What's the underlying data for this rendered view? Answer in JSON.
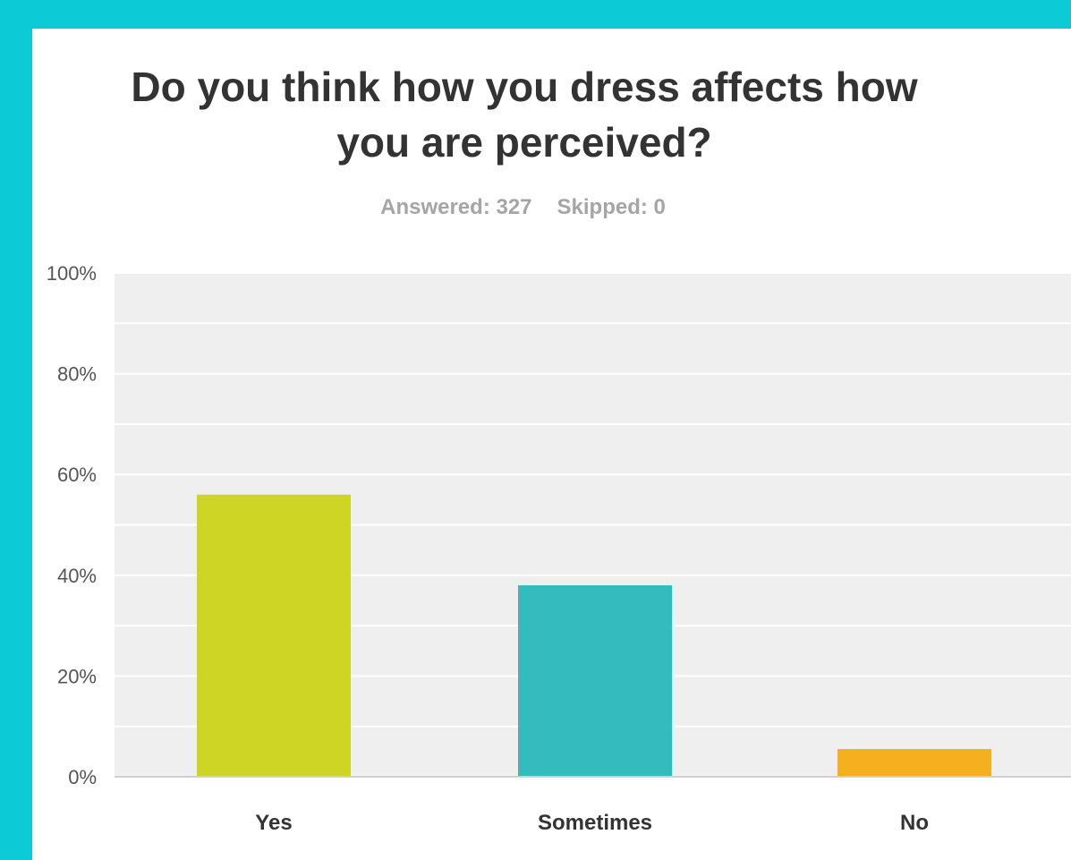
{
  "page": {
    "background_color": "#0ccbd7"
  },
  "chart_data": {
    "type": "bar",
    "title": "Do you think how you dress affects how\nyou are perceived?",
    "stats": {
      "answered": "Answered: 327",
      "skipped": "Skipped: 0"
    },
    "categories": [
      "Yes",
      "Sometimes",
      "No"
    ],
    "values": [
      56,
      38,
      5.5
    ],
    "colors": [
      "#cfd524",
      "#34bbbd",
      "#f5b020"
    ],
    "ylim": [
      0,
      100
    ],
    "yticks": [
      "0%",
      "20%",
      "40%",
      "60%",
      "80%",
      "100%"
    ],
    "xlabel": "",
    "ylabel": "",
    "grid": true,
    "plot_background": "#efefef"
  }
}
